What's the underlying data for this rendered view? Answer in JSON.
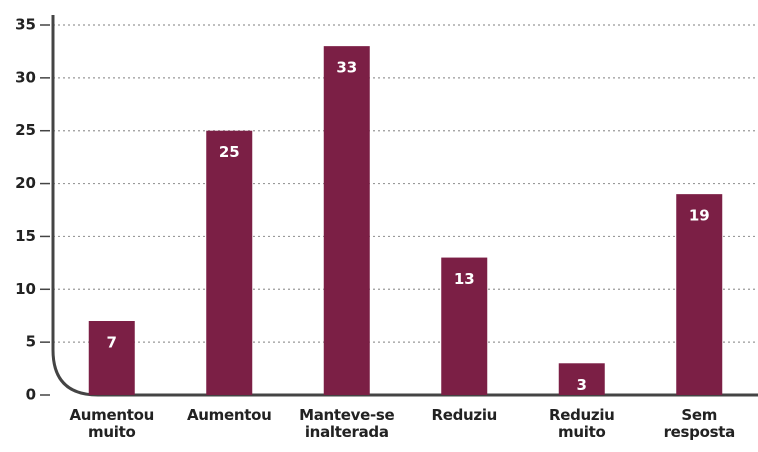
{
  "chart_data": {
    "type": "bar",
    "categories": [
      "Aumentou muito",
      "Aumentou",
      "Manteve-se inalterada",
      "Reduziu",
      "Reduziu muito",
      "Sem resposta"
    ],
    "values": [
      7,
      25,
      33,
      13,
      3,
      19
    ],
    "color": "#7b1f45",
    "ylim": [
      0,
      35
    ],
    "yticks": [
      0,
      5,
      10,
      15,
      20,
      25,
      30,
      35
    ],
    "grid": true
  }
}
